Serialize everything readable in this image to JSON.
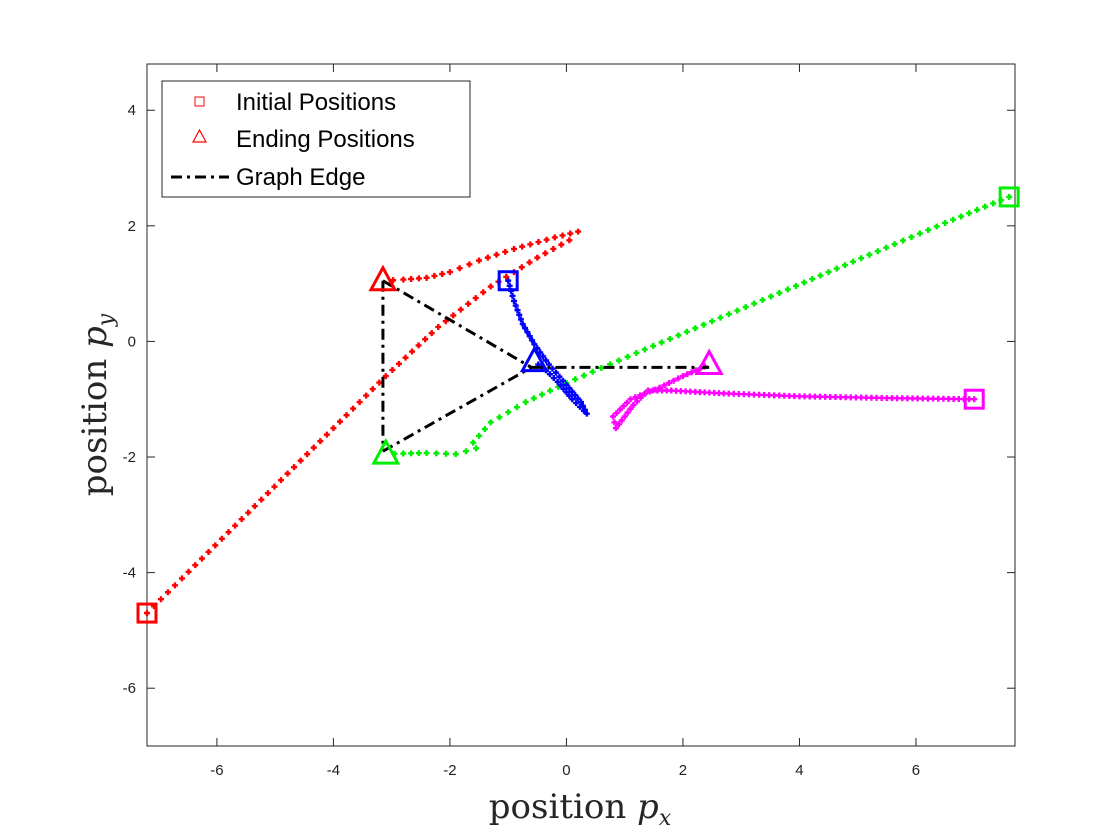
{
  "chart_data": {
    "type": "scatter",
    "xlabel": "position p_x",
    "ylabel": "position p_y",
    "xlim": [
      -7.2,
      7.7
    ],
    "ylim": [
      -7,
      4.8
    ],
    "xticks": [
      -6,
      -4,
      -2,
      0,
      2,
      4,
      6
    ],
    "yticks": [
      -6,
      -4,
      -2,
      0,
      2,
      4
    ],
    "grid": false,
    "legend": {
      "placement": "top-left",
      "entries": [
        {
          "label": "Initial Positions",
          "marker": "square",
          "color": "#ff0000"
        },
        {
          "label": "Ending Positions",
          "marker": "triangle",
          "color": "#ff0000"
        },
        {
          "label": "Graph Edge",
          "marker": "dash-dot-line",
          "color": "#000000"
        }
      ]
    },
    "series": [
      {
        "color": "#ff0000",
        "initial": [
          -7.2,
          -4.7
        ],
        "ending": [
          -3.15,
          1.05
        ],
        "path": [
          [
            -7.2,
            -4.7
          ],
          [
            -6.6,
            -4.1
          ],
          [
            -5.8,
            -3.3
          ],
          [
            -4.9,
            -2.4
          ],
          [
            -4.0,
            -1.5
          ],
          [
            -3.1,
            -0.6
          ],
          [
            -2.2,
            0.25
          ],
          [
            -1.3,
            0.95
          ],
          [
            -0.5,
            1.45
          ],
          [
            0.05,
            1.75
          ],
          [
            0.2,
            1.9
          ],
          [
            -0.2,
            1.8
          ],
          [
            -0.9,
            1.6
          ],
          [
            -1.5,
            1.4
          ],
          [
            -2.0,
            1.2
          ],
          [
            -2.4,
            1.1
          ],
          [
            -2.8,
            1.07
          ],
          [
            -3.15,
            1.05
          ]
        ]
      },
      {
        "color": "#00ee00",
        "initial": [
          7.6,
          2.5
        ],
        "ending": [
          -3.1,
          -1.95
        ],
        "path": [
          [
            7.6,
            2.5
          ],
          [
            6.5,
            2.05
          ],
          [
            5.2,
            1.5
          ],
          [
            3.8,
            0.9
          ],
          [
            2.5,
            0.35
          ],
          [
            1.2,
            -0.2
          ],
          [
            0.0,
            -0.72
          ],
          [
            -0.7,
            -1.05
          ],
          [
            -1.3,
            -1.4
          ],
          [
            -1.6,
            -1.75
          ],
          [
            -1.55,
            -1.85
          ],
          [
            -1.9,
            -1.95
          ],
          [
            -2.4,
            -1.93
          ],
          [
            -2.8,
            -1.94
          ],
          [
            -3.1,
            -1.95
          ]
        ]
      },
      {
        "color": "#0000ff",
        "initial": [
          -1.0,
          1.05
        ],
        "ending": [
          -0.55,
          -0.35
        ],
        "path": [
          [
            -1.0,
            1.05
          ],
          [
            -0.9,
            0.7
          ],
          [
            -0.75,
            0.3
          ],
          [
            -0.55,
            -0.05
          ],
          [
            -0.3,
            -0.4
          ],
          [
            0.0,
            -0.75
          ],
          [
            0.25,
            -1.05
          ],
          [
            0.35,
            -1.25
          ],
          [
            0.3,
            -1.2
          ],
          [
            0.1,
            -1.0
          ],
          [
            -0.15,
            -0.7
          ],
          [
            -0.35,
            -0.5
          ],
          [
            -0.55,
            -0.35
          ]
        ]
      },
      {
        "color": "#ff00ff",
        "initial": [
          7.0,
          -1.0
        ],
        "ending": [
          2.45,
          -0.4
        ],
        "path": [
          [
            7.0,
            -1.0
          ],
          [
            5.5,
            -0.98
          ],
          [
            4.0,
            -0.95
          ],
          [
            2.7,
            -0.9
          ],
          [
            1.8,
            -0.85
          ],
          [
            1.4,
            -0.85
          ],
          [
            1.15,
            -1.1
          ],
          [
            0.85,
            -1.5
          ],
          [
            0.8,
            -1.3
          ],
          [
            1.1,
            -1.0
          ],
          [
            1.6,
            -0.8
          ],
          [
            2.0,
            -0.6
          ],
          [
            2.45,
            -0.4
          ]
        ]
      }
    ],
    "edges": [
      [
        [
          -3.15,
          1.05
        ],
        [
          -0.6,
          -0.45
        ]
      ],
      [
        [
          -3.15,
          1.05
        ],
        [
          -3.15,
          -1.9
        ]
      ],
      [
        [
          -3.15,
          -1.9
        ],
        [
          -0.6,
          -0.45
        ]
      ],
      [
        [
          -0.6,
          -0.45
        ],
        [
          2.45,
          -0.45
        ]
      ]
    ]
  },
  "text": {
    "xlabel_main": "position ",
    "xlabel_var": "p",
    "xlabel_sub": "x",
    "ylabel_main": "position ",
    "ylabel_var": "p",
    "ylabel_sub": "y",
    "legend_initial": "Initial Positions",
    "legend_ending": "Ending Positions",
    "legend_edge": "Graph Edge"
  }
}
